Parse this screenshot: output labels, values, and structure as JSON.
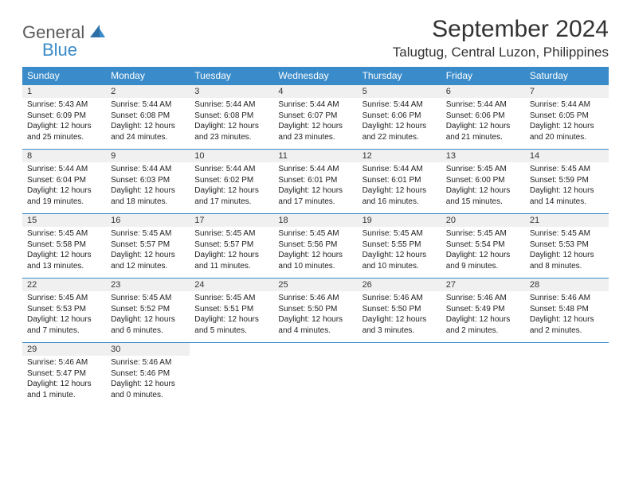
{
  "brand": {
    "main": "General",
    "sub": "Blue"
  },
  "title": "September 2024",
  "location": "Talugtug, Central Luzon, Philippines",
  "colors": {
    "header_bg": "#3a8bc9",
    "header_fg": "#ffffff",
    "daynum_bg": "#f0f0f0",
    "border": "#3a8bc9",
    "text": "#222222",
    "logo_gray": "#5a5a5a",
    "logo_blue": "#3a8bc9"
  },
  "weekdays": [
    "Sunday",
    "Monday",
    "Tuesday",
    "Wednesday",
    "Thursday",
    "Friday",
    "Saturday"
  ],
  "weeks": [
    [
      {
        "n": "1",
        "sr": "Sunrise: 5:43 AM",
        "ss": "Sunset: 6:09 PM",
        "dl": "Daylight: 12 hours and 25 minutes."
      },
      {
        "n": "2",
        "sr": "Sunrise: 5:44 AM",
        "ss": "Sunset: 6:08 PM",
        "dl": "Daylight: 12 hours and 24 minutes."
      },
      {
        "n": "3",
        "sr": "Sunrise: 5:44 AM",
        "ss": "Sunset: 6:08 PM",
        "dl": "Daylight: 12 hours and 23 minutes."
      },
      {
        "n": "4",
        "sr": "Sunrise: 5:44 AM",
        "ss": "Sunset: 6:07 PM",
        "dl": "Daylight: 12 hours and 23 minutes."
      },
      {
        "n": "5",
        "sr": "Sunrise: 5:44 AM",
        "ss": "Sunset: 6:06 PM",
        "dl": "Daylight: 12 hours and 22 minutes."
      },
      {
        "n": "6",
        "sr": "Sunrise: 5:44 AM",
        "ss": "Sunset: 6:06 PM",
        "dl": "Daylight: 12 hours and 21 minutes."
      },
      {
        "n": "7",
        "sr": "Sunrise: 5:44 AM",
        "ss": "Sunset: 6:05 PM",
        "dl": "Daylight: 12 hours and 20 minutes."
      }
    ],
    [
      {
        "n": "8",
        "sr": "Sunrise: 5:44 AM",
        "ss": "Sunset: 6:04 PM",
        "dl": "Daylight: 12 hours and 19 minutes."
      },
      {
        "n": "9",
        "sr": "Sunrise: 5:44 AM",
        "ss": "Sunset: 6:03 PM",
        "dl": "Daylight: 12 hours and 18 minutes."
      },
      {
        "n": "10",
        "sr": "Sunrise: 5:44 AM",
        "ss": "Sunset: 6:02 PM",
        "dl": "Daylight: 12 hours and 17 minutes."
      },
      {
        "n": "11",
        "sr": "Sunrise: 5:44 AM",
        "ss": "Sunset: 6:01 PM",
        "dl": "Daylight: 12 hours and 17 minutes."
      },
      {
        "n": "12",
        "sr": "Sunrise: 5:44 AM",
        "ss": "Sunset: 6:01 PM",
        "dl": "Daylight: 12 hours and 16 minutes."
      },
      {
        "n": "13",
        "sr": "Sunrise: 5:45 AM",
        "ss": "Sunset: 6:00 PM",
        "dl": "Daylight: 12 hours and 15 minutes."
      },
      {
        "n": "14",
        "sr": "Sunrise: 5:45 AM",
        "ss": "Sunset: 5:59 PM",
        "dl": "Daylight: 12 hours and 14 minutes."
      }
    ],
    [
      {
        "n": "15",
        "sr": "Sunrise: 5:45 AM",
        "ss": "Sunset: 5:58 PM",
        "dl": "Daylight: 12 hours and 13 minutes."
      },
      {
        "n": "16",
        "sr": "Sunrise: 5:45 AM",
        "ss": "Sunset: 5:57 PM",
        "dl": "Daylight: 12 hours and 12 minutes."
      },
      {
        "n": "17",
        "sr": "Sunrise: 5:45 AM",
        "ss": "Sunset: 5:57 PM",
        "dl": "Daylight: 12 hours and 11 minutes."
      },
      {
        "n": "18",
        "sr": "Sunrise: 5:45 AM",
        "ss": "Sunset: 5:56 PM",
        "dl": "Daylight: 12 hours and 10 minutes."
      },
      {
        "n": "19",
        "sr": "Sunrise: 5:45 AM",
        "ss": "Sunset: 5:55 PM",
        "dl": "Daylight: 12 hours and 10 minutes."
      },
      {
        "n": "20",
        "sr": "Sunrise: 5:45 AM",
        "ss": "Sunset: 5:54 PM",
        "dl": "Daylight: 12 hours and 9 minutes."
      },
      {
        "n": "21",
        "sr": "Sunrise: 5:45 AM",
        "ss": "Sunset: 5:53 PM",
        "dl": "Daylight: 12 hours and 8 minutes."
      }
    ],
    [
      {
        "n": "22",
        "sr": "Sunrise: 5:45 AM",
        "ss": "Sunset: 5:53 PM",
        "dl": "Daylight: 12 hours and 7 minutes."
      },
      {
        "n": "23",
        "sr": "Sunrise: 5:45 AM",
        "ss": "Sunset: 5:52 PM",
        "dl": "Daylight: 12 hours and 6 minutes."
      },
      {
        "n": "24",
        "sr": "Sunrise: 5:45 AM",
        "ss": "Sunset: 5:51 PM",
        "dl": "Daylight: 12 hours and 5 minutes."
      },
      {
        "n": "25",
        "sr": "Sunrise: 5:46 AM",
        "ss": "Sunset: 5:50 PM",
        "dl": "Daylight: 12 hours and 4 minutes."
      },
      {
        "n": "26",
        "sr": "Sunrise: 5:46 AM",
        "ss": "Sunset: 5:50 PM",
        "dl": "Daylight: 12 hours and 3 minutes."
      },
      {
        "n": "27",
        "sr": "Sunrise: 5:46 AM",
        "ss": "Sunset: 5:49 PM",
        "dl": "Daylight: 12 hours and 2 minutes."
      },
      {
        "n": "28",
        "sr": "Sunrise: 5:46 AM",
        "ss": "Sunset: 5:48 PM",
        "dl": "Daylight: 12 hours and 2 minutes."
      }
    ],
    [
      {
        "n": "29",
        "sr": "Sunrise: 5:46 AM",
        "ss": "Sunset: 5:47 PM",
        "dl": "Daylight: 12 hours and 1 minute."
      },
      {
        "n": "30",
        "sr": "Sunrise: 5:46 AM",
        "ss": "Sunset: 5:46 PM",
        "dl": "Daylight: 12 hours and 0 minutes."
      },
      null,
      null,
      null,
      null,
      null
    ]
  ]
}
